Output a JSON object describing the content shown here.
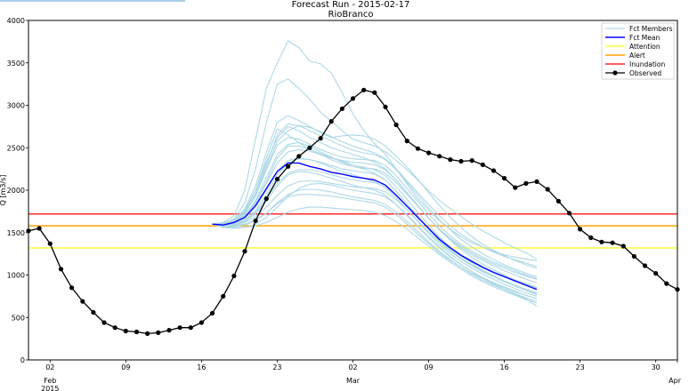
{
  "chart_data": {
    "type": "line",
    "title": "Forecast Run - 2015-02-17",
    "subtitle": "RioBranco",
    "ylabel": "Q [m3/s]",
    "ylim": [
      0,
      4000
    ],
    "yticks": [
      0,
      500,
      1000,
      1500,
      2000,
      2500,
      3000,
      3500,
      4000
    ],
    "xlim": [
      "2015-01-31",
      "2015-04-01"
    ],
    "xticks": [
      {
        "date": "2015-02-02",
        "label": "02",
        "sublabel": "Feb\n2015"
      },
      {
        "date": "2015-02-09",
        "label": "09",
        "sublabel": ""
      },
      {
        "date": "2015-02-16",
        "label": "16",
        "sublabel": ""
      },
      {
        "date": "2015-02-23",
        "label": "23",
        "sublabel": ""
      },
      {
        "date": "2015-03-02",
        "label": "02",
        "sublabel": "Mar"
      },
      {
        "date": "2015-03-09",
        "label": "09",
        "sublabel": ""
      },
      {
        "date": "2015-03-16",
        "label": "16",
        "sublabel": ""
      },
      {
        "date": "2015-03-23",
        "label": "23",
        "sublabel": ""
      },
      {
        "date": "2015-03-30",
        "label": "30",
        "sublabel": ""
      },
      {
        "date": "2015-04-01",
        "label": "",
        "sublabel": "Apr"
      }
    ],
    "legend": {
      "position": "top-right",
      "entries": [
        "Fct Members",
        "Fct Mean",
        "Attention",
        "Alert",
        "Inundation",
        "Observed"
      ]
    },
    "thresholds": [
      {
        "name": "Attention",
        "value": 1320,
        "color": "#ffff33"
      },
      {
        "name": "Alert",
        "value": 1580,
        "color": "#ffa500"
      },
      {
        "name": "Inundation",
        "value": 1720,
        "color": "#ff2a2a"
      }
    ],
    "colors": {
      "members": "#add8e6",
      "mean": "#0000ff",
      "observed": "#000000"
    },
    "observed": {
      "name": "Observed",
      "x": [
        "2015-01-31",
        "2015-02-01",
        "2015-02-02",
        "2015-02-03",
        "2015-02-04",
        "2015-02-05",
        "2015-02-06",
        "2015-02-07",
        "2015-02-08",
        "2015-02-09",
        "2015-02-10",
        "2015-02-11",
        "2015-02-12",
        "2015-02-13",
        "2015-02-14",
        "2015-02-15",
        "2015-02-16",
        "2015-02-17",
        "2015-02-18",
        "2015-02-19",
        "2015-02-20",
        "2015-02-21",
        "2015-02-22",
        "2015-02-23",
        "2015-02-24",
        "2015-02-25",
        "2015-02-26",
        "2015-02-27",
        "2015-02-28",
        "2015-03-01",
        "2015-03-02",
        "2015-03-03",
        "2015-03-04",
        "2015-03-05",
        "2015-03-06",
        "2015-03-07",
        "2015-03-08",
        "2015-03-09",
        "2015-03-10",
        "2015-03-11",
        "2015-03-12",
        "2015-03-13",
        "2015-03-14",
        "2015-03-15",
        "2015-03-16",
        "2015-03-17",
        "2015-03-18",
        "2015-03-19",
        "2015-03-20",
        "2015-03-21",
        "2015-03-22",
        "2015-03-23",
        "2015-03-24",
        "2015-03-25",
        "2015-03-26",
        "2015-03-27",
        "2015-03-28",
        "2015-03-29",
        "2015-03-30",
        "2015-03-31",
        "2015-04-01"
      ],
      "y": [
        1520,
        1550,
        1370,
        1070,
        850,
        690,
        560,
        440,
        380,
        340,
        330,
        310,
        320,
        350,
        380,
        380,
        440,
        550,
        750,
        990,
        1280,
        1640,
        1900,
        2130,
        2280,
        2400,
        2500,
        2610,
        2810,
        2960,
        3080,
        3180,
        3150,
        2980,
        2770,
        2580,
        2490,
        2440,
        2400,
        2360,
        2340,
        2350,
        2300,
        2230,
        2140,
        2030,
        2080,
        2100,
        2010,
        1870,
        1730,
        1540,
        1440,
        1390,
        1380,
        1340,
        1220,
        1110,
        1020,
        900,
        830
      ]
    },
    "mean": {
      "name": "Fct Mean",
      "x": [
        "2015-02-17",
        "2015-02-18",
        "2015-02-19",
        "2015-02-20",
        "2015-02-21",
        "2015-02-22",
        "2015-02-23",
        "2015-02-24",
        "2015-02-25",
        "2015-02-26",
        "2015-02-27",
        "2015-02-28",
        "2015-03-01",
        "2015-03-02",
        "2015-03-03",
        "2015-03-04",
        "2015-03-05",
        "2015-03-06",
        "2015-03-07",
        "2015-03-08",
        "2015-03-09",
        "2015-03-10",
        "2015-03-11",
        "2015-03-12",
        "2015-03-13",
        "2015-03-14",
        "2015-03-15",
        "2015-03-16",
        "2015-03-17",
        "2015-03-18",
        "2015-03-19"
      ],
      "y": [
        1600,
        1590,
        1620,
        1680,
        1820,
        2020,
        2220,
        2320,
        2320,
        2280,
        2250,
        2210,
        2190,
        2160,
        2140,
        2120,
        2060,
        1940,
        1810,
        1680,
        1550,
        1420,
        1320,
        1230,
        1160,
        1090,
        1030,
        980,
        930,
        880,
        830
      ]
    },
    "members": {
      "name": "Fct Members",
      "x": [
        "2015-02-17",
        "2015-02-18",
        "2015-02-19",
        "2015-02-20",
        "2015-02-21",
        "2015-02-22",
        "2015-02-23",
        "2015-02-24",
        "2015-02-25",
        "2015-02-26",
        "2015-02-27",
        "2015-02-28",
        "2015-03-01",
        "2015-03-02",
        "2015-03-03",
        "2015-03-04",
        "2015-03-05",
        "2015-03-06",
        "2015-03-07",
        "2015-03-08",
        "2015-03-09",
        "2015-03-10",
        "2015-03-11",
        "2015-03-12",
        "2015-03-13",
        "2015-03-14",
        "2015-03-15",
        "2015-03-16",
        "2015-03-17",
        "2015-03-18",
        "2015-03-19"
      ],
      "series": [
        [
          1600,
          1620,
          1700,
          2000,
          2600,
          3200,
          3500,
          3760,
          3680,
          3520,
          3490,
          3380,
          3150,
          2900,
          2700,
          2550,
          2420,
          2250,
          2070,
          1900,
          1760,
          1640,
          1540,
          1450,
          1380,
          1330,
          1280,
          1240,
          1210,
          1190,
          1170
        ],
        [
          1600,
          1610,
          1660,
          1850,
          2250,
          2800,
          3250,
          3310,
          3200,
          3070,
          2920,
          2810,
          2700,
          2600,
          2560,
          2520,
          2450,
          2350,
          2240,
          2120,
          1990,
          1880,
          1780,
          1690,
          1600,
          1520,
          1450,
          1380,
          1320,
          1260,
          1190
        ],
        [
          1600,
          1610,
          1650,
          1780,
          2050,
          2450,
          2800,
          2880,
          2820,
          2750,
          2680,
          2620,
          2640,
          2650,
          2640,
          2600,
          2520,
          2400,
          2270,
          2130,
          1970,
          1820,
          1680,
          1560,
          1450,
          1360,
          1290,
          1230,
          1170,
          1120,
          1080
        ],
        [
          1600,
          1600,
          1640,
          1760,
          2000,
          2330,
          2620,
          2750,
          2700,
          2620,
          2560,
          2500,
          2460,
          2420,
          2380,
          2330,
          2250,
          2120,
          1970,
          1820,
          1670,
          1530,
          1410,
          1300,
          1210,
          1130,
          1060,
          1000,
          940,
          890,
          850
        ],
        [
          1600,
          1590,
          1620,
          1700,
          1880,
          2150,
          2420,
          2540,
          2560,
          2520,
          2450,
          2390,
          2330,
          2280,
          2250,
          2200,
          2120,
          1990,
          1840,
          1690,
          1540,
          1400,
          1290,
          1190,
          1110,
          1040,
          980,
          920,
          870,
          820,
          780
        ],
        [
          1600,
          1590,
          1610,
          1670,
          1800,
          2000,
          2220,
          2350,
          2380,
          2360,
          2320,
          2270,
          2220,
          2180,
          2140,
          2100,
          2030,
          1910,
          1770,
          1630,
          1490,
          1360,
          1250,
          1160,
          1080,
          1010,
          950,
          890,
          840,
          790,
          750
        ],
        [
          1600,
          1580,
          1590,
          1630,
          1720,
          1870,
          2050,
          2180,
          2220,
          2210,
          2180,
          2140,
          2100,
          2060,
          2030,
          2000,
          1940,
          1830,
          1700,
          1570,
          1440,
          1320,
          1210,
          1120,
          1040,
          970,
          910,
          860,
          810,
          760,
          720
        ],
        [
          1600,
          1570,
          1570,
          1590,
          1640,
          1730,
          1850,
          1950,
          2000,
          2010,
          2000,
          1980,
          1950,
          1920,
          1900,
          1880,
          1830,
          1740,
          1630,
          1510,
          1390,
          1280,
          1180,
          1090,
          1010,
          940,
          880,
          830,
          780,
          730,
          690
        ],
        [
          1600,
          1570,
          1560,
          1560,
          1580,
          1620,
          1680,
          1740,
          1780,
          1800,
          1800,
          1790,
          1780,
          1770,
          1760,
          1740,
          1700,
          1630,
          1540,
          1440,
          1340,
          1240,
          1150,
          1070,
          990,
          920,
          860,
          810,
          760,
          710,
          670
        ],
        [
          1600,
          1560,
          1550,
          1560,
          1600,
          1680,
          1800,
          1930,
          2020,
          2070,
          2080,
          2060,
          2030,
          2000,
          1980,
          1960,
          1920,
          1830,
          1710,
          1580,
          1450,
          1330,
          1220,
          1120,
          1040,
          960,
          890,
          830,
          770,
          720,
          630
        ],
        [
          1600,
          1600,
          1630,
          1720,
          1940,
          2260,
          2580,
          2700,
          2760,
          2740,
          2690,
          2630,
          2570,
          2520,
          2480,
          2440,
          2370,
          2250,
          2110,
          1970,
          1830,
          1700,
          1580,
          1480,
          1400,
          1330,
          1270,
          1220,
          1180,
          1140,
          1100
        ],
        [
          1600,
          1610,
          1640,
          1740,
          1960,
          2300,
          2650,
          2780,
          2760,
          2700,
          2640,
          2580,
          2520,
          2470,
          2440,
          2420,
          2360,
          2240,
          2090,
          1940,
          1790,
          1650,
          1530,
          1420,
          1330,
          1250,
          1180,
          1120,
          1070,
          1020,
          980
        ],
        [
          1600,
          1600,
          1620,
          1700,
          1850,
          2080,
          2320,
          2450,
          2480,
          2460,
          2420,
          2360,
          2310,
          2280,
          2260,
          2250,
          2200,
          2090,
          1950,
          1810,
          1670,
          1540,
          1430,
          1340,
          1260,
          1190,
          1130,
          1080,
          1030,
          990,
          950
        ],
        [
          1600,
          1590,
          1600,
          1640,
          1740,
          1900,
          2080,
          2200,
          2240,
          2240,
          2220,
          2180,
          2150,
          2120,
          2100,
          2090,
          2040,
          1940,
          1810,
          1680,
          1550,
          1430,
          1330,
          1240,
          1170,
          1100,
          1040,
          990,
          940,
          900,
          860
        ],
        [
          1600,
          1580,
          1590,
          1620,
          1690,
          1800,
          1940,
          2050,
          2100,
          2110,
          2100,
          2080,
          2060,
          2040,
          2030,
          2020,
          1980,
          1890,
          1770,
          1640,
          1510,
          1390,
          1280,
          1190,
          1110,
          1040,
          980,
          930,
          880,
          830,
          790
        ],
        [
          1600,
          1600,
          1640,
          1760,
          2000,
          2380,
          2720,
          2650,
          2560,
          2480,
          2420,
          2380,
          2350,
          2330,
          2320,
          2300,
          2240,
          2120,
          1970,
          1820,
          1670,
          1540,
          1420,
          1320,
          1240,
          1170,
          1110,
          1050,
          1000,
          950,
          910
        ],
        [
          1600,
          1590,
          1620,
          1700,
          1860,
          2100,
          2380,
          2520,
          2520,
          2480,
          2430,
          2380,
          2340,
          2300,
          2270,
          2240,
          2170,
          2040,
          1890,
          1740,
          1590,
          1450,
          1330,
          1230,
          1140,
          1060,
          990,
          930,
          870,
          820,
          770
        ],
        [
          1600,
          1580,
          1580,
          1600,
          1650,
          1730,
          1840,
          1920,
          1950,
          1950,
          1940,
          1930,
          1910,
          1890,
          1870,
          1850,
          1800,
          1710,
          1600,
          1480,
          1370,
          1260,
          1170,
          1090,
          1020,
          960,
          900,
          850,
          800,
          760,
          720
        ],
        [
          1600,
          1590,
          1600,
          1650,
          1760,
          1950,
          2180,
          2320,
          2370,
          2360,
          2330,
          2290,
          2250,
          2230,
          2210,
          2190,
          2120,
          1990,
          1840,
          1690,
          1540,
          1410,
          1300,
          1200,
          1120,
          1050,
          990,
          930,
          880,
          830,
          790
        ],
        [
          1600,
          1600,
          1630,
          1730,
          1930,
          2240,
          2530,
          2620,
          2600,
          2540,
          2480,
          2430,
          2390,
          2370,
          2360,
          2350,
          2290,
          2170,
          2020,
          1870,
          1720,
          1580,
          1460,
          1360,
          1280,
          1210,
          1150,
          1100,
          1050,
          1000,
          960
        ]
      ]
    }
  }
}
